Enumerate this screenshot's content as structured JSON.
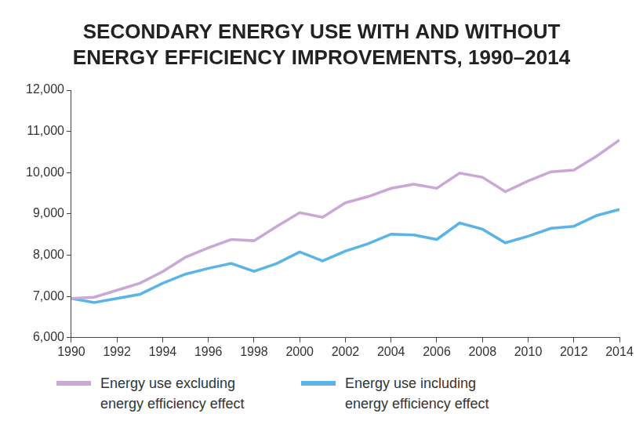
{
  "chart_data": {
    "type": "line",
    "title": [
      "SECONDARY ENERGY USE WITH AND WITHOUT",
      "ENERGY EFFICIENCY IMPROVEMENTS, 1990–2014"
    ],
    "x": [
      1990,
      1991,
      1992,
      1993,
      1994,
      1995,
      1996,
      1997,
      1998,
      1999,
      2000,
      2001,
      2002,
      2003,
      2004,
      2005,
      2006,
      2007,
      2008,
      2009,
      2010,
      2011,
      2012,
      2013,
      2014
    ],
    "series": [
      {
        "name": "Energy use excluding energy efficiency effect",
        "color": "#c9a8d6",
        "values": [
          6950,
          6980,
          7150,
          7320,
          7600,
          7950,
          8180,
          8380,
          8350,
          8700,
          9030,
          8920,
          9270,
          9420,
          9620,
          9720,
          9620,
          9990,
          9890,
          9540,
          9800,
          10020,
          10060,
          10400,
          10790
        ]
      },
      {
        "name": "Energy use including energy efficiency effect",
        "color": "#5ab4e5",
        "values": [
          6950,
          6850,
          6950,
          7050,
          7320,
          7540,
          7680,
          7800,
          7610,
          7800,
          8080,
          7860,
          8100,
          8280,
          8510,
          8490,
          8380,
          8780,
          8630,
          8300,
          8460,
          8650,
          8700,
          8960,
          9110
        ]
      }
    ],
    "xlim": [
      1990,
      2014
    ],
    "xticks": [
      1990,
      1992,
      1994,
      1996,
      1998,
      2000,
      2002,
      2004,
      2006,
      2008,
      2010,
      2012,
      2014
    ],
    "ylim": [
      6000,
      12000
    ],
    "yticks": [
      {
        "value": 6000,
        "label": "6,000"
      },
      {
        "value": 7000,
        "label": "7,000"
      },
      {
        "value": 8000,
        "label": "8,000"
      },
      {
        "value": 9000,
        "label": "9,000"
      },
      {
        "value": 10000,
        "label": "10,000"
      },
      {
        "value": 11000,
        "label": "11,000"
      },
      {
        "value": 12000,
        "label": "12,000"
      }
    ],
    "grid": false,
    "legend": "bottom"
  }
}
